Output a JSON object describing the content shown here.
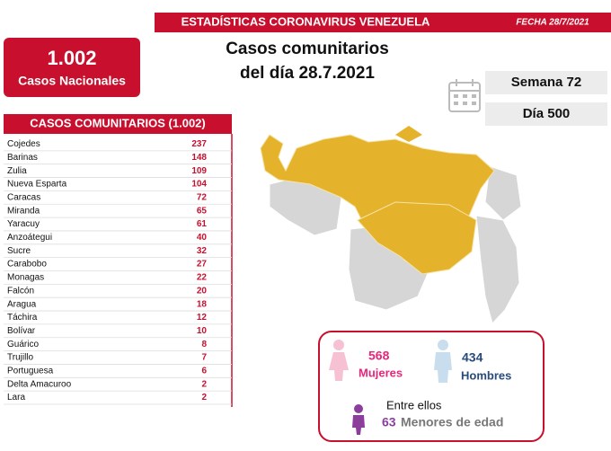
{
  "header": {
    "title": "ESTADÍSTICAS CORONAVIRUS VENEZUELA",
    "date": "FECHA 28/7/2021"
  },
  "national": {
    "total": "1.002",
    "label": "Casos Nacionales"
  },
  "headline": {
    "line1": "Casos comunitarios",
    "line2": "del día 28.7.2021"
  },
  "week": "Semana 72",
  "day": "Día 500",
  "table": {
    "title": "CASOS COMUNITARIOS (1.002)",
    "rows": [
      [
        "Cojedes",
        237
      ],
      [
        "Barinas",
        148
      ],
      [
        "Zulia",
        109
      ],
      [
        "Nueva Esparta",
        104
      ],
      [
        "Caracas",
        72
      ],
      [
        "Miranda",
        65
      ],
      [
        "Yaracuy",
        61
      ],
      [
        "Anzoátegui",
        40
      ],
      [
        "Sucre",
        32
      ],
      [
        "Carabobo",
        27
      ],
      [
        "Monagas",
        22
      ],
      [
        "Falcón",
        20
      ],
      [
        "Aragua",
        18
      ],
      [
        "Táchira",
        12
      ],
      [
        "Bolívar",
        10
      ],
      [
        "Guárico",
        8
      ],
      [
        "Trujillo",
        7
      ],
      [
        "Portuguesa",
        6
      ],
      [
        "Delta Amacuroo",
        2
      ],
      [
        "Lara",
        2
      ]
    ]
  },
  "gender": {
    "women": {
      "count": "568",
      "label": "Mujeres"
    },
    "men": {
      "count": "434",
      "label": "Hombres"
    }
  },
  "minors": {
    "intro": "Entre ellos",
    "count": "63",
    "label": "Menores de edad"
  }
}
